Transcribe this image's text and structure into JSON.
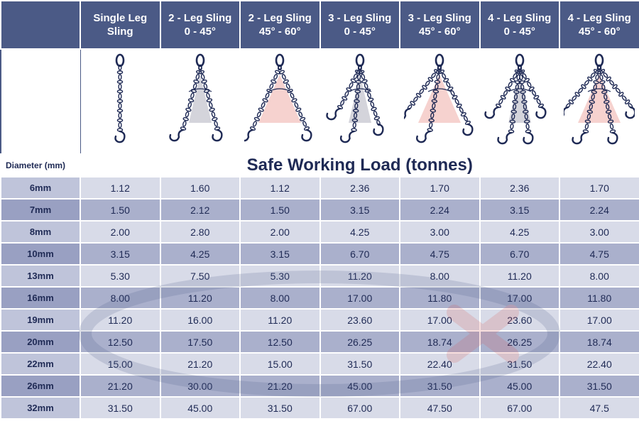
{
  "columns": [
    {
      "line1": "Single Leg",
      "line2": "Sling",
      "legs": 1,
      "angle": "none"
    },
    {
      "line1": "2 - Leg Sling",
      "line2": "0 - 45°",
      "legs": 2,
      "angle": "narrow"
    },
    {
      "line1": "2 - Leg Sling",
      "line2": "45° - 60°",
      "legs": 2,
      "angle": "wide"
    },
    {
      "line1": "3 - Leg Sling",
      "line2": "0 - 45°",
      "legs": 3,
      "angle": "narrow"
    },
    {
      "line1": "3 - Leg Sling",
      "line2": "45° - 60°",
      "legs": 3,
      "angle": "wide"
    },
    {
      "line1": "4 - Leg Sling",
      "line2": "0 - 45°",
      "legs": 4,
      "angle": "narrow"
    },
    {
      "line1": "4 - Leg Sling",
      "line2": "45° - 60°",
      "legs": 4,
      "angle": "wide"
    }
  ],
  "diameter_header": "Diameter (mm)",
  "swl_caption": "Safe Working Load (tonnes)",
  "rows": [
    {
      "d": "6mm",
      "v": [
        "1.12",
        "1.60",
        "1.12",
        "2.36",
        "1.70",
        "2.36",
        "1.70"
      ]
    },
    {
      "d": "7mm",
      "v": [
        "1.50",
        "2.12",
        "1.50",
        "3.15",
        "2.24",
        "3.15",
        "2.24"
      ]
    },
    {
      "d": "8mm",
      "v": [
        "2.00",
        "2.80",
        "2.00",
        "4.25",
        "3.00",
        "4.25",
        "3.00"
      ]
    },
    {
      "d": "10mm",
      "v": [
        "3.15",
        "4.25",
        "3.15",
        "6.70",
        "4.75",
        "6.70",
        "4.75"
      ]
    },
    {
      "d": "13mm",
      "v": [
        "5.30",
        "7.50",
        "5.30",
        "11.20",
        "8.00",
        "11.20",
        "8.00"
      ]
    },
    {
      "d": "16mm",
      "v": [
        "8.00",
        "11.20",
        "8.00",
        "17.00",
        "11.80",
        "17.00",
        "11.80"
      ]
    },
    {
      "d": "19mm",
      "v": [
        "11.20",
        "16.00",
        "11.20",
        "23.60",
        "17.00",
        "23.60",
        "17.00"
      ]
    },
    {
      "d": "20mm",
      "v": [
        "12.50",
        "17.50",
        "12.50",
        "26.25",
        "18.74",
        "26.25",
        "18.74"
      ]
    },
    {
      "d": "22mm",
      "v": [
        "15.00",
        "21.20",
        "15.00",
        "31.50",
        "22.40",
        "31.50",
        "22.40"
      ]
    },
    {
      "d": "26mm",
      "v": [
        "21.20",
        "30.00",
        "21.20",
        "45.00",
        "31.50",
        "45.00",
        "31.50"
      ]
    },
    {
      "d": "32mm",
      "v": [
        "31.50",
        "45.00",
        "31.50",
        "67.00",
        "47.50",
        "67.00",
        "47.5"
      ]
    }
  ],
  "colors": {
    "header": "#4b5a86",
    "row_light": "#d8dbe8",
    "row_dark": "#aab0cc",
    "text": "#1f2a55",
    "chain": "#1f2a55",
    "angle_narrow": "#c9c9d2",
    "angle_wide": "#f4c7c3"
  }
}
